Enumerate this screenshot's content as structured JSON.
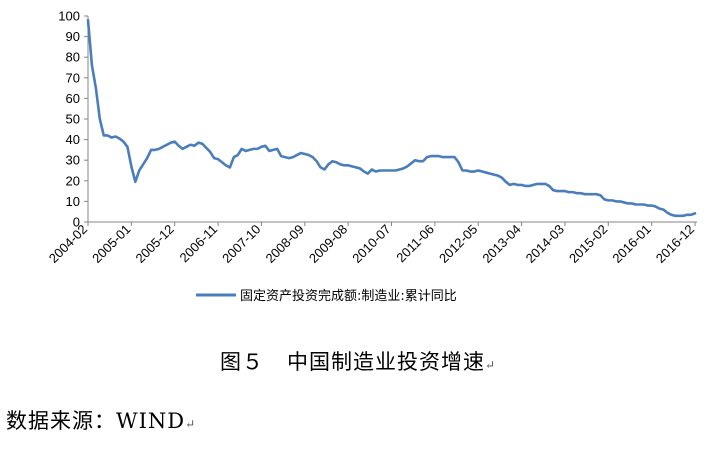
{
  "chart_data": {
    "type": "line",
    "title": "",
    "xlabel": "",
    "ylabel": "",
    "ylim": [
      0,
      100
    ],
    "yticks": [
      0,
      10,
      20,
      30,
      40,
      50,
      60,
      70,
      80,
      90,
      100
    ],
    "xtick_labels": [
      "2004-02",
      "2005-01",
      "2005-12",
      "2006-11",
      "2007-10",
      "2008-09",
      "2009-08",
      "2010-07",
      "2011-06",
      "2012-05",
      "2013-04",
      "2014-03",
      "2015-02",
      "2016-01",
      "2016-12"
    ],
    "grid": false,
    "legend_position": "bottom",
    "series": [
      {
        "name": "固定资产投资完成额:制造业:累计同比",
        "color": "#4a7ebb",
        "points": [
          [
            "2004-02",
            98
          ],
          [
            "2004-03",
            76
          ],
          [
            "2004-04",
            65
          ],
          [
            "2004-05",
            50
          ],
          [
            "2004-06",
            42
          ],
          [
            "2004-07",
            42
          ],
          [
            "2004-08",
            41
          ],
          [
            "2004-09",
            41.5
          ],
          [
            "2004-10",
            40.5
          ],
          [
            "2004-11",
            39
          ],
          [
            "2004-12",
            36.5
          ],
          [
            "2005-01",
            27
          ],
          [
            "2005-02",
            19.5
          ],
          [
            "2005-03",
            25
          ],
          [
            "2005-04",
            28
          ],
          [
            "2005-05",
            31
          ],
          [
            "2005-06",
            35
          ],
          [
            "2005-07",
            35
          ],
          [
            "2005-08",
            35.5
          ],
          [
            "2005-09",
            36.5
          ],
          [
            "2005-10",
            37.5
          ],
          [
            "2005-11",
            38.5
          ],
          [
            "2005-12",
            39
          ],
          [
            "2006-01",
            37
          ],
          [
            "2006-02",
            35.5
          ],
          [
            "2006-03",
            36.5
          ],
          [
            "2006-04",
            37.5
          ],
          [
            "2006-05",
            37
          ],
          [
            "2006-06",
            38.5
          ],
          [
            "2006-07",
            38
          ],
          [
            "2006-08",
            36
          ],
          [
            "2006-09",
            34
          ],
          [
            "2006-10",
            31
          ],
          [
            "2006-11",
            30.5
          ],
          [
            "2006-12",
            29
          ],
          [
            "2007-01",
            27.5
          ],
          [
            "2007-02",
            26.5
          ],
          [
            "2007-03",
            31.5
          ],
          [
            "2007-04",
            32.5
          ],
          [
            "2007-05",
            35.5
          ],
          [
            "2007-06",
            34.5
          ],
          [
            "2007-07",
            35
          ],
          [
            "2007-08",
            35.5
          ],
          [
            "2007-09",
            35.5
          ],
          [
            "2007-10",
            36.5
          ],
          [
            "2007-11",
            37
          ],
          [
            "2007-12",
            34.5
          ],
          [
            "2008-01",
            35
          ],
          [
            "2008-02",
            35.5
          ],
          [
            "2008-03",
            32
          ],
          [
            "2008-04",
            31.5
          ],
          [
            "2008-05",
            31
          ],
          [
            "2008-06",
            31.5
          ],
          [
            "2008-07",
            32.5
          ],
          [
            "2008-08",
            33.5
          ],
          [
            "2008-09",
            33
          ],
          [
            "2008-10",
            32.5
          ],
          [
            "2008-11",
            31.5
          ],
          [
            "2008-12",
            29.5
          ],
          [
            "2009-01",
            26.5
          ],
          [
            "2009-02",
            25.5
          ],
          [
            "2009-03",
            28
          ],
          [
            "2009-04",
            29.5
          ],
          [
            "2009-05",
            29
          ],
          [
            "2009-06",
            28
          ],
          [
            "2009-07",
            27.5
          ],
          [
            "2009-08",
            27.5
          ],
          [
            "2009-09",
            27
          ],
          [
            "2009-10",
            26.5
          ],
          [
            "2009-11",
            26
          ],
          [
            "2009-12",
            24.5
          ],
          [
            "2010-01",
            23.5
          ],
          [
            "2010-02",
            25.5
          ],
          [
            "2010-03",
            24.5
          ],
          [
            "2010-04",
            25
          ],
          [
            "2010-05",
            25
          ],
          [
            "2010-06",
            25
          ],
          [
            "2010-07",
            25
          ],
          [
            "2010-08",
            25
          ],
          [
            "2010-09",
            25.5
          ],
          [
            "2010-10",
            26
          ],
          [
            "2010-11",
            27
          ],
          [
            "2010-12",
            28.5
          ],
          [
            "2011-01",
            30
          ],
          [
            "2011-02",
            29.5
          ],
          [
            "2011-03",
            29.5
          ],
          [
            "2011-04",
            31.5
          ],
          [
            "2011-05",
            32
          ],
          [
            "2011-06",
            32
          ],
          [
            "2011-07",
            32
          ],
          [
            "2011-08",
            31.5
          ],
          [
            "2011-09",
            31.5
          ],
          [
            "2011-10",
            31.5
          ],
          [
            "2011-11",
            31.5
          ],
          [
            "2011-12",
            29
          ],
          [
            "2012-01",
            25
          ],
          [
            "2012-02",
            25
          ],
          [
            "2012-03",
            24.5
          ],
          [
            "2012-04",
            24.5
          ],
          [
            "2012-05",
            25
          ],
          [
            "2012-06",
            24.5
          ],
          [
            "2012-07",
            24
          ],
          [
            "2012-08",
            23.5
          ],
          [
            "2012-09",
            23
          ],
          [
            "2012-10",
            22.5
          ],
          [
            "2012-11",
            21.5
          ],
          [
            "2012-12",
            19.5
          ],
          [
            "2013-01",
            18
          ],
          [
            "2013-02",
            18.5
          ],
          [
            "2013-03",
            18
          ],
          [
            "2013-04",
            18
          ],
          [
            "2013-05",
            17.5
          ],
          [
            "2013-06",
            17.5
          ],
          [
            "2013-07",
            18
          ],
          [
            "2013-08",
            18.5
          ],
          [
            "2013-09",
            18.5
          ],
          [
            "2013-10",
            18.5
          ],
          [
            "2013-11",
            17.5
          ],
          [
            "2013-12",
            15.5
          ],
          [
            "2014-01",
            15
          ],
          [
            "2014-02",
            15
          ],
          [
            "2014-03",
            15
          ],
          [
            "2014-04",
            14.5
          ],
          [
            "2014-05",
            14.5
          ],
          [
            "2014-06",
            14
          ],
          [
            "2014-07",
            14
          ],
          [
            "2014-08",
            13.5
          ],
          [
            "2014-09",
            13.5
          ],
          [
            "2014-10",
            13.5
          ],
          [
            "2014-11",
            13.5
          ],
          [
            "2014-12",
            13
          ],
          [
            "2015-01",
            11
          ],
          [
            "2015-02",
            10.5
          ],
          [
            "2015-03",
            10.5
          ],
          [
            "2015-04",
            10
          ],
          [
            "2015-05",
            10
          ],
          [
            "2015-06",
            9.5
          ],
          [
            "2015-07",
            9
          ],
          [
            "2015-08",
            9
          ],
          [
            "2015-09",
            8.5
          ],
          [
            "2015-10",
            8.5
          ],
          [
            "2015-11",
            8.5
          ],
          [
            "2015-12",
            8
          ],
          [
            "2016-01",
            8
          ],
          [
            "2016-02",
            7.5
          ],
          [
            "2016-03",
            6.5
          ],
          [
            "2016-04",
            6
          ],
          [
            "2016-05",
            4.5
          ],
          [
            "2016-06",
            3.5
          ],
          [
            "2016-07",
            3
          ],
          [
            "2016-08",
            3
          ],
          [
            "2016-09",
            3
          ],
          [
            "2016-10",
            3.5
          ],
          [
            "2016-11",
            3.5
          ],
          [
            "2016-12",
            4.2
          ]
        ]
      }
    ]
  },
  "caption": {
    "figure_label": "图５",
    "figure_title": "中国制造业投资增速",
    "mark": "↵"
  },
  "source": {
    "text": "数据来源：WIND",
    "mark": "↵"
  }
}
